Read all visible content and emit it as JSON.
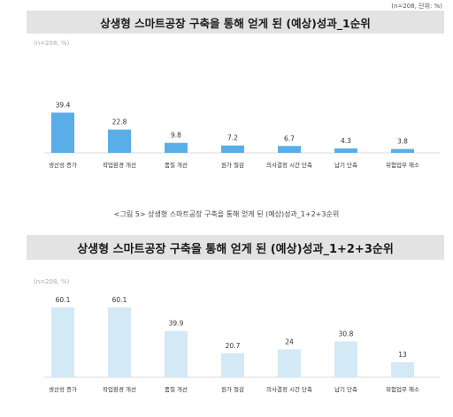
{
  "unit_note": "(n=208, 단위: %)",
  "chart_data": [
    {
      "type": "bar",
      "title": "상생형 스마트공장 구축을 통해 얻게 된 (예상)성과_1순위",
      "note": "(n=208, %)",
      "categories": [
        "생산성 증가",
        "작업환경 개선",
        "품질 개선",
        "원가 절감",
        "의사결정 시간 단축",
        "납기 단축",
        "위험업무 해소"
      ],
      "values": [
        39.4,
        22.8,
        9.8,
        7.2,
        6.7,
        4.3,
        3.8
      ],
      "ylim": [
        0,
        45
      ],
      "color": "#5aaee8"
    },
    {
      "type": "bar",
      "title": "상생형 스마트공장 구축을 통해 얻게 된 (예상)성과_1+2+3순위",
      "caption": "<그림 5> 상생형 스마트공장 구축을 통해 얻게 된 (예상)성과_1+2+3순위",
      "note": "(n=208, %)",
      "categories": [
        "생산성 증가",
        "작업환경 개선",
        "품질 개선",
        "원가 절감",
        "의사결정 시간 단축",
        "납기 단축",
        "위험업무 해소"
      ],
      "values": [
        60.1,
        60.1,
        39.9,
        20.7,
        24,
        30.8,
        13
      ],
      "ylim": [
        0,
        70
      ],
      "color": "#d3e9f5"
    }
  ]
}
